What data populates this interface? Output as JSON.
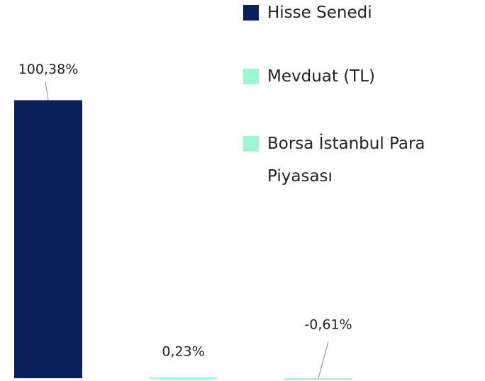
{
  "chart_data": {
    "type": "bar",
    "series": [
      {
        "name": "Hisse Senedi",
        "color": "#0b1f5c",
        "values": [
          100.38
        ],
        "value_labels": [
          "100,38%"
        ]
      },
      {
        "name": "Mevduat (TL)",
        "color": "#9ef7d3",
        "values": [
          0.23
        ],
        "value_labels": [
          "0,23%"
        ]
      },
      {
        "name": "Borsa İstanbul Para Piyasası",
        "color": "#9ef7d3",
        "values": [
          -0.61
        ],
        "value_labels": [
          "-0,61%"
        ]
      }
    ],
    "ylim": [
      -1,
      100.5
    ]
  }
}
